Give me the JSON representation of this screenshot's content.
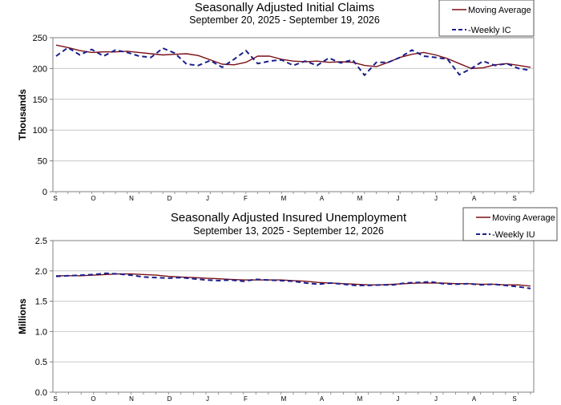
{
  "colors": {
    "moving_average": "#7a0f17",
    "weekly": "#1a1f8c",
    "grid": "#c8c8c8",
    "axis": "#808080"
  },
  "chart_data": [
    {
      "type": "line",
      "title": "Seasonally Adjusted Initial Claims",
      "subtitle": "September 20, 2025 - September 19, 2026",
      "ylabel": "Thousands",
      "ylim": [
        0,
        250
      ],
      "yticks": [
        "0",
        "50",
        "100",
        "150",
        "200",
        "250"
      ],
      "x_month_labels": [
        "S",
        "O",
        "N",
        "D",
        "J",
        "F",
        "M",
        "A",
        "M",
        "J",
        "J",
        "A",
        "S"
      ],
      "grid": true,
      "legend_position": "top-right",
      "series": [
        {
          "name": "Moving Average",
          "style": "solid",
          "values": [
            238,
            234,
            229,
            226,
            227,
            227,
            228,
            226,
            224,
            222,
            223,
            224,
            221,
            214,
            207,
            206,
            210,
            220,
            220,
            215,
            212,
            211,
            212,
            210,
            211,
            210,
            205,
            203,
            210,
            218,
            223,
            226,
            222,
            216,
            208,
            200,
            201,
            206,
            208,
            205,
            202
          ]
        },
        {
          "name": "-Weekly IC",
          "style": "dashed",
          "values": [
            220,
            234,
            222,
            231,
            220,
            230,
            226,
            220,
            218,
            233,
            225,
            207,
            205,
            213,
            202,
            215,
            229,
            208,
            212,
            214,
            205,
            212,
            205,
            217,
            209,
            214,
            189,
            210,
            210,
            218,
            230,
            220,
            218,
            215,
            190,
            200,
            212,
            205,
            208,
            200,
            197
          ]
        }
      ]
    },
    {
      "type": "line",
      "title": "Seasonally Adjusted Insured Unemployment",
      "subtitle": "September 13, 2025 - September 12, 2026",
      "ylabel": "Millions",
      "ylim": [
        0,
        2.5
      ],
      "yticks": [
        "0.0",
        "0.5",
        "1.0",
        "1.5",
        "2.0",
        "2.5"
      ],
      "x_month_labels": [
        "S",
        "O",
        "N",
        "D",
        "J",
        "F",
        "M",
        "A",
        "M",
        "J",
        "J",
        "A",
        "S"
      ],
      "grid": true,
      "legend_position": "top-right",
      "series": [
        {
          "name": "Moving Average",
          "style": "solid",
          "values": [
            1.92,
            1.92,
            1.92,
            1.93,
            1.94,
            1.95,
            1.95,
            1.94,
            1.93,
            1.91,
            1.9,
            1.89,
            1.88,
            1.87,
            1.86,
            1.85,
            1.85,
            1.85,
            1.85,
            1.84,
            1.83,
            1.81,
            1.8,
            1.79,
            1.78,
            1.77,
            1.77,
            1.78,
            1.79,
            1.8,
            1.8,
            1.8,
            1.79,
            1.79,
            1.78,
            1.78,
            1.77,
            1.77,
            1.75
          ]
        },
        {
          "name": "-Weekly IU",
          "style": "dashed",
          "values": [
            1.91,
            1.92,
            1.93,
            1.94,
            1.96,
            1.95,
            1.93,
            1.9,
            1.89,
            1.88,
            1.89,
            1.87,
            1.85,
            1.84,
            1.85,
            1.83,
            1.86,
            1.85,
            1.84,
            1.83,
            1.8,
            1.78,
            1.8,
            1.78,
            1.76,
            1.76,
            1.77,
            1.77,
            1.8,
            1.81,
            1.82,
            1.79,
            1.78,
            1.79,
            1.77,
            1.78,
            1.76,
            1.74,
            1.71
          ]
        }
      ]
    }
  ]
}
